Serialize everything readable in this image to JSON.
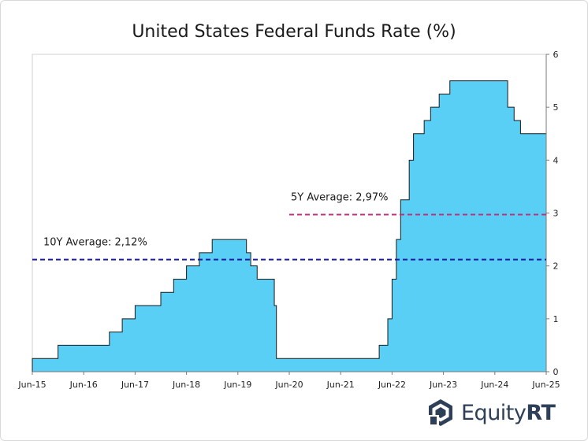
{
  "chart_data": {
    "type": "area",
    "step": true,
    "title": "United States Federal Funds Rate (%)",
    "xlabel": "",
    "ylabel": "",
    "xlim": [
      2015.458,
      2025.458
    ],
    "ylim": [
      0,
      6
    ],
    "y_axis_side": "right",
    "yticks": [
      0,
      1,
      2,
      3,
      4,
      5,
      6
    ],
    "xticks": [
      {
        "value": 2015.458,
        "label": "Jun-15"
      },
      {
        "value": 2016.458,
        "label": "Jun-16"
      },
      {
        "value": 2017.458,
        "label": "Jun-17"
      },
      {
        "value": 2018.458,
        "label": "Jun-18"
      },
      {
        "value": 2019.458,
        "label": "Jun-19"
      },
      {
        "value": 2020.458,
        "label": "Jun-20"
      },
      {
        "value": 2021.458,
        "label": "Jun-21"
      },
      {
        "value": 2022.458,
        "label": "Jun-22"
      },
      {
        "value": 2023.458,
        "label": "Jun-23"
      },
      {
        "value": 2024.458,
        "label": "Jun-24"
      },
      {
        "value": 2025.458,
        "label": "Jun-25"
      }
    ],
    "series": [
      {
        "name": "Federal Funds Rate",
        "color": "#59cff5",
        "x": [
          2015.458,
          2015.958,
          2016.958,
          2017.208,
          2017.458,
          2017.958,
          2018.208,
          2018.458,
          2018.708,
          2018.958,
          2019.625,
          2019.708,
          2019.833,
          2020.167,
          2020.208,
          2022.208,
          2022.375,
          2022.458,
          2022.542,
          2022.625,
          2022.792,
          2022.875,
          2023.083,
          2023.208,
          2023.375,
          2023.583,
          2024.708,
          2024.833,
          2024.958,
          2025.458
        ],
        "values": [
          0.25,
          0.5,
          0.75,
          1.0,
          1.25,
          1.5,
          1.75,
          2.0,
          2.25,
          2.5,
          2.25,
          2.0,
          1.75,
          1.25,
          0.25,
          0.5,
          1.0,
          1.75,
          2.5,
          3.25,
          4.0,
          4.5,
          4.75,
          5.0,
          5.25,
          5.5,
          5.0,
          4.75,
          4.5,
          4.5
        ]
      }
    ],
    "annotations": [
      {
        "label": "10Y Average: 2,12%",
        "value": 2.12,
        "x_from": 2015.458,
        "x_to": 2025.458,
        "color": "#1a1aa8"
      },
      {
        "label": "5Y Average: 2,97%",
        "value": 2.97,
        "x_from": 2020.458,
        "x_to": 2025.458,
        "color": "#c0307c"
      }
    ],
    "grid": false
  },
  "brand": {
    "name_part1": "Equity",
    "name_part2": "RT",
    "color": "#2e3f58"
  }
}
